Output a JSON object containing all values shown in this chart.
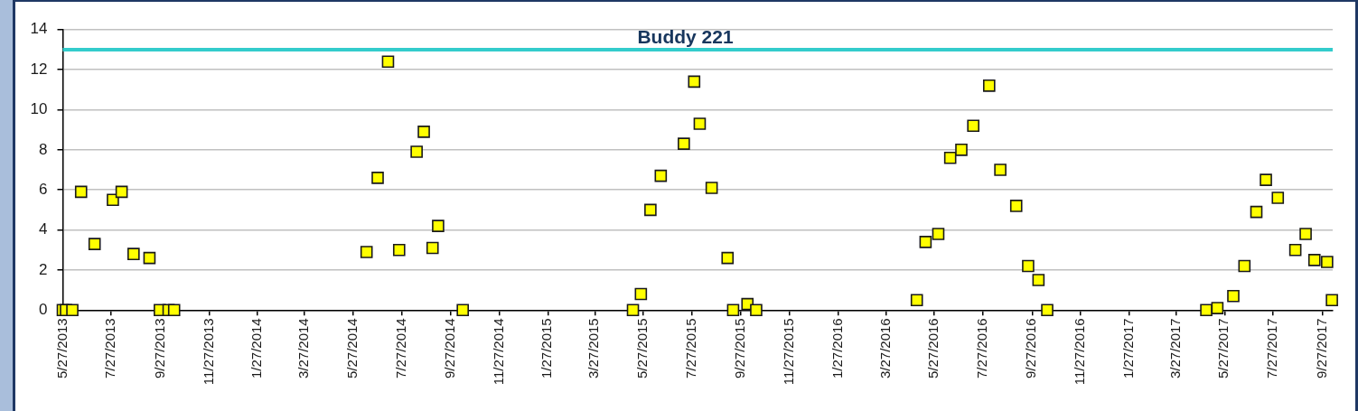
{
  "chart_data": {
    "type": "scatter",
    "title": "Buddy 221",
    "color": "#ffff00",
    "marker": "square",
    "grid": "y",
    "x": [
      "2013-05-27",
      "2013-05-31",
      "2013-06-08",
      "2013-06-19",
      "2013-07-06",
      "2013-07-29",
      "2013-08-09",
      "2013-08-24",
      "2013-09-13",
      "2013-09-26",
      "2013-10-07",
      "2013-10-14",
      "2014-06-13",
      "2014-06-27",
      "2014-07-10",
      "2014-07-24",
      "2014-08-15",
      "2014-08-24",
      "2014-09-04",
      "2014-09-11",
      "2014-10-12",
      "2015-05-14",
      "2015-05-24",
      "2015-06-05",
      "2015-06-18",
      "2015-07-17",
      "2015-07-30",
      "2015-08-06",
      "2015-08-21",
      "2015-09-10",
      "2015-09-17",
      "2015-10-05",
      "2015-10-16",
      "2016-05-05",
      "2016-05-16",
      "2016-06-01",
      "2016-06-16",
      "2016-06-30",
      "2016-07-15",
      "2016-08-04",
      "2016-08-18",
      "2016-09-07",
      "2016-09-22",
      "2016-10-05",
      "2016-10-16",
      "2017-05-04",
      "2017-05-18",
      "2017-06-07",
      "2017-06-21",
      "2017-07-06",
      "2017-07-18",
      "2017-08-02",
      "2017-08-24",
      "2017-09-06",
      "2017-09-17",
      "2017-10-03",
      "2017-10-09"
    ],
    "values": [
      0,
      0,
      0,
      5.9,
      3.3,
      5.5,
      5.9,
      2.8,
      2.6,
      0,
      0,
      0,
      2.9,
      6.6,
      12.4,
      3.0,
      7.9,
      8.9,
      3.1,
      4.2,
      0,
      0,
      0.8,
      5.0,
      6.7,
      8.3,
      11.4,
      9.3,
      6.1,
      2.6,
      0,
      0.3,
      0,
      0.5,
      3.4,
      3.8,
      7.6,
      8.0,
      9.2,
      11.2,
      7.0,
      5.2,
      2.2,
      1.5,
      0,
      0,
      0.1,
      0.7,
      2.2,
      4.9,
      6.5,
      5.6,
      3.0,
      3.8,
      2.5,
      2.4,
      0.5
    ],
    "xlim": [
      "2013-05-27",
      "2017-10-10"
    ],
    "xticks": [
      {
        "value": "2013-05-27",
        "label": "5/27/2013"
      },
      {
        "value": "2013-07-27",
        "label": "7/27/2013"
      },
      {
        "value": "2013-09-27",
        "label": "9/27/2013"
      },
      {
        "value": "2013-11-27",
        "label": "11/27/2013"
      },
      {
        "value": "2014-01-27",
        "label": "1/27/2014"
      },
      {
        "value": "2014-03-27",
        "label": "3/27/2014"
      },
      {
        "value": "2014-05-27",
        "label": "5/27/2014"
      },
      {
        "value": "2014-07-27",
        "label": "7/27/2014"
      },
      {
        "value": "2014-09-27",
        "label": "9/27/2014"
      },
      {
        "value": "2014-11-27",
        "label": "11/27/2014"
      },
      {
        "value": "2015-01-27",
        "label": "1/27/2015"
      },
      {
        "value": "2015-03-27",
        "label": "3/27/2015"
      },
      {
        "value": "2015-05-27",
        "label": "5/27/2015"
      },
      {
        "value": "2015-07-27",
        "label": "7/27/2015"
      },
      {
        "value": "2015-09-27",
        "label": "9/27/2015"
      },
      {
        "value": "2015-11-27",
        "label": "11/27/2015"
      },
      {
        "value": "2016-01-27",
        "label": "1/27/2016"
      },
      {
        "value": "2016-03-27",
        "label": "3/27/2016"
      },
      {
        "value": "2016-05-27",
        "label": "5/27/2016"
      },
      {
        "value": "2016-07-27",
        "label": "7/27/2016"
      },
      {
        "value": "2016-09-27",
        "label": "9/27/2016"
      },
      {
        "value": "2016-11-27",
        "label": "11/27/2016"
      },
      {
        "value": "2017-01-27",
        "label": "1/27/2017"
      },
      {
        "value": "2017-03-27",
        "label": "3/27/2017"
      },
      {
        "value": "2017-05-27",
        "label": "5/27/2017"
      },
      {
        "value": "2017-07-27",
        "label": "7/27/2017"
      },
      {
        "value": "2017-09-27",
        "label": "9/27/2017"
      }
    ],
    "ylim": [
      0,
      14
    ],
    "yticks": [
      0,
      2,
      4,
      6,
      8,
      10,
      12,
      14
    ],
    "ref_lines": [
      {
        "axis": "y",
        "value": 13,
        "color": "#33cccc"
      }
    ]
  }
}
